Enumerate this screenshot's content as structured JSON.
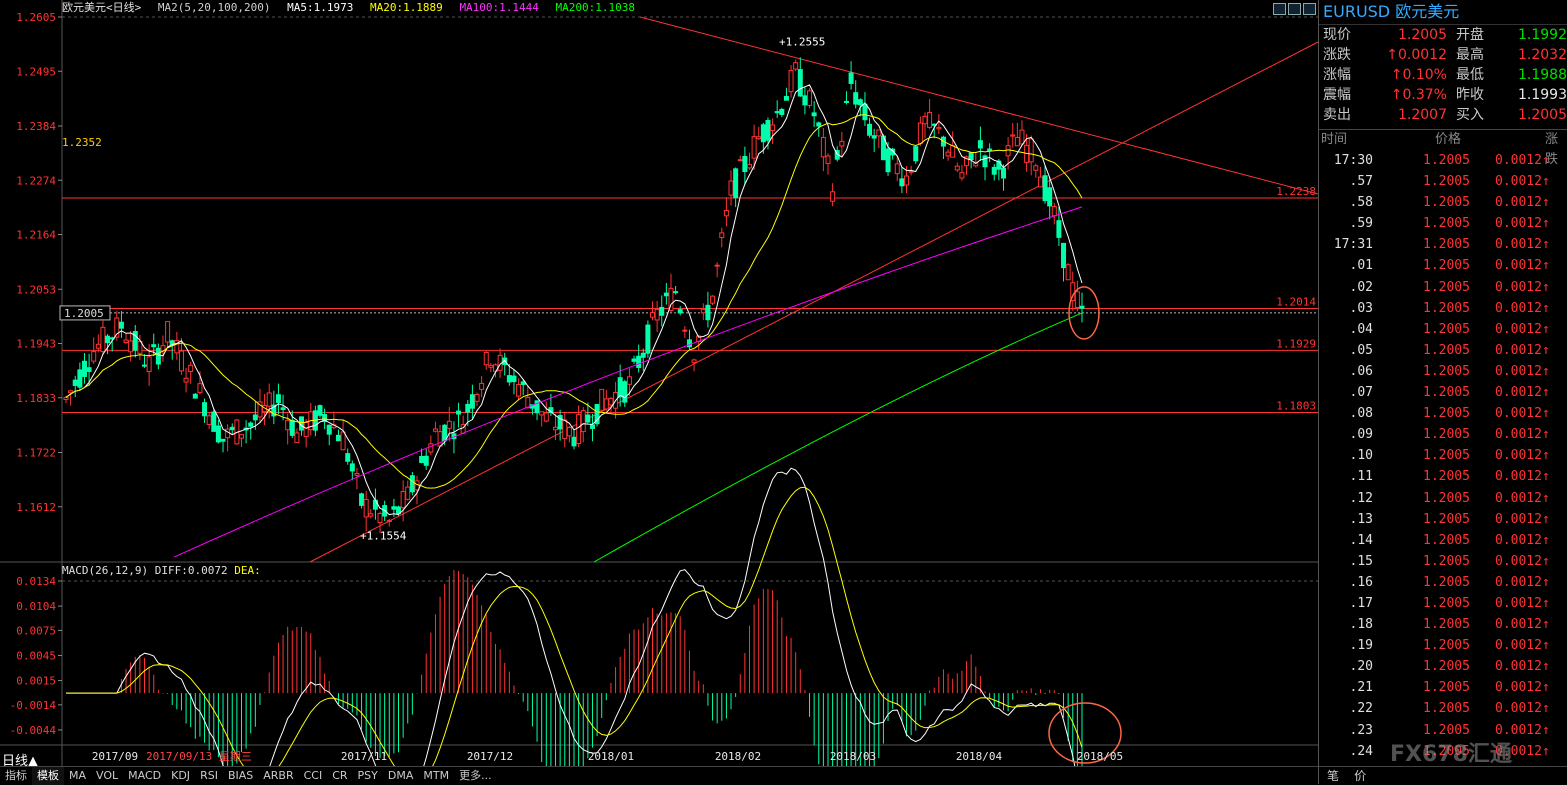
{
  "legend": {
    "symbol": "欧元美元<日线>",
    "indicator": "MA2(5,20,100,200)",
    "ma5": "MA5:1.1973",
    "ma20": "MA20:1.1889",
    "ma100": "MA100:1.1444",
    "ma200": "MA200:1.1038"
  },
  "macd_legend": {
    "label": "MACD(26,12,9)",
    "diff": "DIFF:0.0072",
    "dea": "DEA:"
  },
  "colors": {
    "ma5": "#ffffff",
    "ma20": "#ffff00",
    "ma100": "#ff00ff",
    "ma200": "#00ff00",
    "up": "#ff3333",
    "down": "#00ffaa",
    "annotation": "#ff3333",
    "circle": "#ff6644"
  },
  "markers": {
    "high": "1.2555",
    "low": "1.1554",
    "left_label": "1.2352",
    "current_price": "1.2005"
  },
  "side": {
    "title": "EURUSD 欧元美元",
    "quote_rows": [
      {
        "l1": "现价",
        "v1": "1.2005",
        "l2": "开盘",
        "v2": "1.1992"
      },
      {
        "l1": "涨跌",
        "v1": "↑0.0012",
        "l2": "最高",
        "v2": "1.2032"
      },
      {
        "l1": "涨幅",
        "v1": "↑0.10%",
        "l2": "最低",
        "v2": "1.1988"
      },
      {
        "l1": "震幅",
        "v1": "↑0.37%",
        "l2": "昨收",
        "v2": "1.1993"
      },
      {
        "l1": "卖出",
        "v1": "1.2007",
        "l2": "买入",
        "v2": "1.2005"
      }
    ],
    "ticks_header": {
      "time": "时间",
      "price": "价格",
      "change": "涨跌"
    },
    "ticks": [
      {
        "t": "17:30",
        "p": "1.2005",
        "c": "0.0012↑"
      },
      {
        "t": ".57",
        "p": "1.2005",
        "c": "0.0012↑"
      },
      {
        "t": ".58",
        "p": "1.2005",
        "c": "0.0012↑"
      },
      {
        "t": ".59",
        "p": "1.2005",
        "c": "0.0012↑"
      },
      {
        "t": "17:31",
        "p": "1.2005",
        "c": "0.0012↑"
      },
      {
        "t": ".01",
        "p": "1.2005",
        "c": "0.0012↑"
      },
      {
        "t": ".02",
        "p": "1.2005",
        "c": "0.0012↑"
      },
      {
        "t": ".03",
        "p": "1.2005",
        "c": "0.0012↑"
      },
      {
        "t": ".04",
        "p": "1.2005",
        "c": "0.0012↑"
      },
      {
        "t": ".05",
        "p": "1.2005",
        "c": "0.0012↑"
      },
      {
        "t": ".06",
        "p": "1.2005",
        "c": "0.0012↑"
      },
      {
        "t": ".07",
        "p": "1.2005",
        "c": "0.0012↑"
      },
      {
        "t": ".08",
        "p": "1.2005",
        "c": "0.0012↑"
      },
      {
        "t": ".09",
        "p": "1.2005",
        "c": "0.0012↑"
      },
      {
        "t": ".10",
        "p": "1.2005",
        "c": "0.0012↑"
      },
      {
        "t": ".11",
        "p": "1.2005",
        "c": "0.0012↑"
      },
      {
        "t": ".12",
        "p": "1.2005",
        "c": "0.0012↑"
      },
      {
        "t": ".13",
        "p": "1.2005",
        "c": "0.0012↑"
      },
      {
        "t": ".14",
        "p": "1.2005",
        "c": "0.0012↑"
      },
      {
        "t": ".15",
        "p": "1.2005",
        "c": "0.0012↑"
      },
      {
        "t": ".16",
        "p": "1.2005",
        "c": "0.0012↑"
      },
      {
        "t": ".17",
        "p": "1.2005",
        "c": "0.0012↑"
      },
      {
        "t": ".18",
        "p": "1.2005",
        "c": "0.0012↑"
      },
      {
        "t": ".19",
        "p": "1.2005",
        "c": "0.0012↑"
      },
      {
        "t": ".20",
        "p": "1.2005",
        "c": "0.0012↑"
      },
      {
        "t": ".21",
        "p": "1.2005",
        "c": "0.0012↑"
      },
      {
        "t": ".22",
        "p": "1.2005",
        "c": "0.0012↑"
      },
      {
        "t": ".23",
        "p": "1.2005",
        "c": "0.0012↑"
      },
      {
        "t": ".24",
        "p": "1.2005",
        "c": "0.0012↑"
      }
    ],
    "bottom_tabs": [
      "笔",
      "价"
    ],
    "watermark": "FX678汇通"
  },
  "bottom_bar": {
    "period": "日线▲",
    "tabs": [
      "指标",
      "模板",
      "MA",
      "VOL",
      "MACD",
      "KDJ",
      "RSI",
      "BIAS",
      "ARBR",
      "CCI",
      "CR",
      "PSY",
      "DMA",
      "MTM",
      "更多..."
    ]
  },
  "date_axis": {
    "labels": [
      "2017/09",
      "2017/09/13 星期三",
      "2017/11",
      "2017/12",
      "2018/01",
      "2018/02",
      "2018/03",
      "2018/04",
      "2018/05"
    ]
  },
  "chart_data": [
    {
      "type": "candlestick",
      "title": "欧元美元<日线>",
      "ylim": [
        1.15,
        1.2605
      ],
      "y_ticks": [
        "1.2605",
        "1.2495",
        "1.2384",
        "1.2274",
        "1.2164",
        "1.2053",
        "1.1943",
        "1.1833",
        "1.1722",
        "1.1612"
      ],
      "horizontal_levels": [
        {
          "label": "1.2238",
          "value": 1.2238
        },
        {
          "label": "1.2014",
          "value": 1.2014
        },
        {
          "label": "1.1929",
          "value": 1.1929
        },
        {
          "label": "1.1803",
          "value": 1.1803
        }
      ],
      "current_price": 1.2005,
      "high": {
        "label": "1.2555",
        "value": 1.2555
      },
      "low": {
        "label": "1.1554",
        "value": 1.1554
      },
      "ma_last": {
        "MA5": 1.1973,
        "MA20": 1.1889,
        "MA100": 1.1444,
        "MA200": 1.1038
      },
      "grid": false
    },
    {
      "type": "bar",
      "title": "MACD(26,12,9)",
      "ylim": [
        -0.0062,
        0.0134
      ],
      "y_ticks": [
        "0.0134",
        "0.0104",
        "0.0075",
        "0.0045",
        "0.0015",
        "-0.0014",
        "-0.0044"
      ],
      "diff_last": 0.0072
    }
  ]
}
